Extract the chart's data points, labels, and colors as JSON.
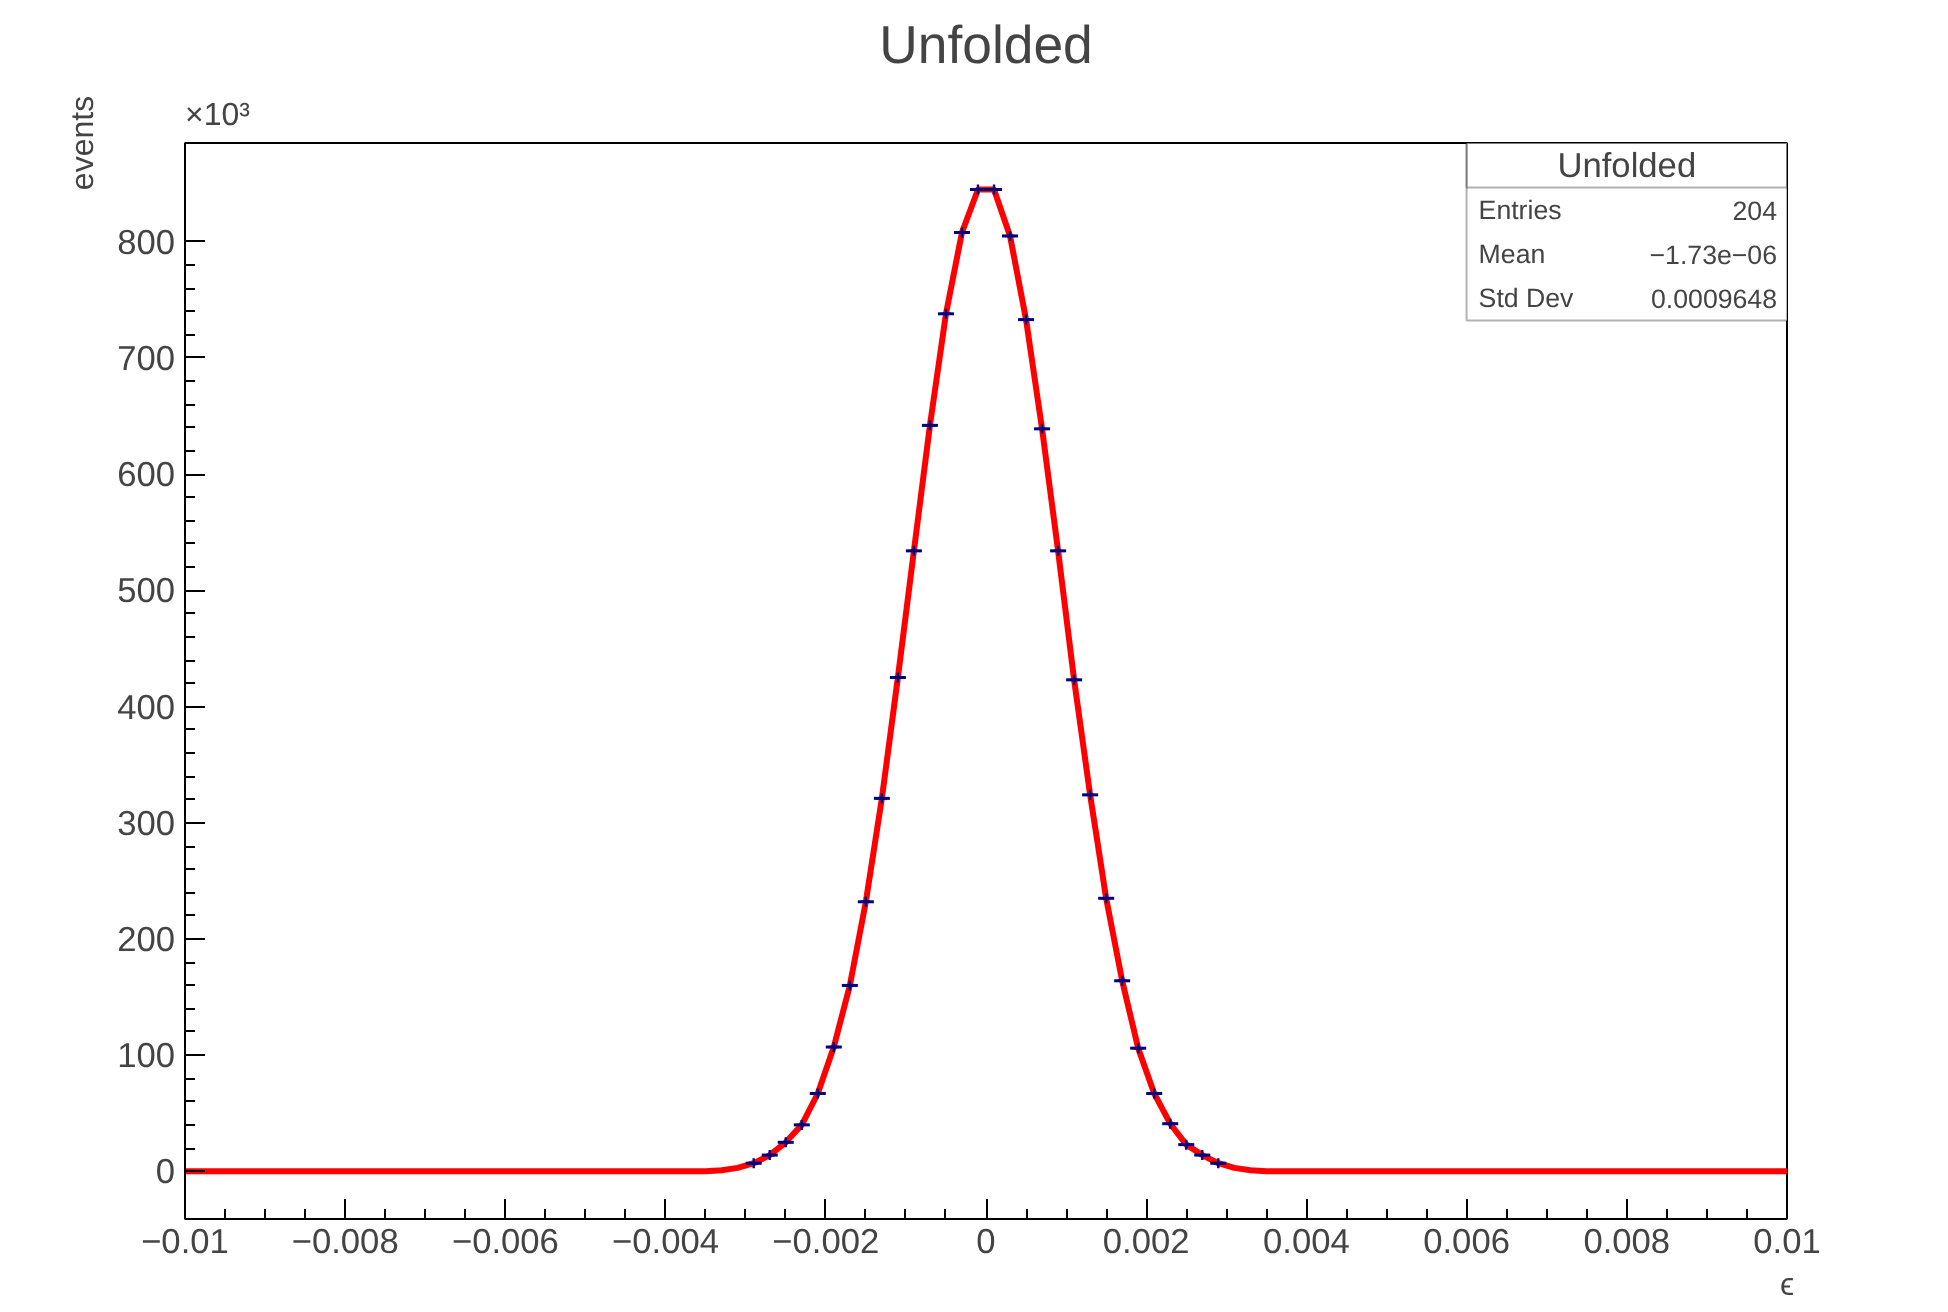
{
  "chart_data": {
    "type": "scatter",
    "title": "Unfolded",
    "xlabel": "ϵ",
    "ylabel": "events",
    "annotations": [
      "×10³",
      "Unfolded",
      "Entries",
      "204",
      "Mean",
      "−1.73e−06",
      "Std Dev",
      "0.0009648"
    ],
    "xlim": [
      -0.01,
      0.01
    ],
    "xticks": [
      {
        "value": -0.01,
        "label": "−0.01"
      },
      {
        "value": -0.008,
        "label": "−0.008"
      },
      {
        "value": -0.006,
        "label": "−0.006"
      },
      {
        "value": -0.004,
        "label": "−0.004"
      },
      {
        "value": -0.002,
        "label": "−0.002"
      },
      0,
      0.002,
      0.004,
      0.006,
      0.008,
      0.01
    ],
    "ylim": [
      -41,
      885
    ],
    "yticks": [
      0,
      100,
      200,
      300,
      400,
      500,
      600,
      700,
      800
    ],
    "grid": false,
    "marker": "cross",
    "series": [
      {
        "type": "line",
        "color": "#ff0000",
        "marker": "none",
        "x": [
          -0.01,
          -0.0035,
          -0.0033,
          -0.0031,
          -0.0029,
          -0.0027,
          -0.0025,
          -0.0023,
          -0.0021,
          -0.0019,
          -0.0017,
          -0.0015,
          -0.0013,
          -0.0011,
          -0.0009,
          -0.0007,
          -0.0005,
          -0.0003,
          -0.0001,
          0.0001,
          0.0003,
          0.0005,
          0.0007,
          0.0009,
          0.0011,
          0.0013,
          0.0015,
          0.0017,
          0.0019,
          0.0021,
          0.0023,
          0.0025,
          0.0027,
          0.0029,
          0.0031,
          0.0033,
          0.0035,
          0.01
        ],
        "values": [
          0,
          0,
          1,
          3,
          7,
          14,
          25,
          40,
          67,
          107,
          160,
          232,
          321,
          425,
          534,
          642,
          738,
          808,
          845,
          845,
          805,
          733,
          639,
          534,
          423,
          324,
          235,
          164,
          106,
          67,
          41,
          23,
          14,
          7,
          3,
          1,
          0,
          0
        ]
      },
      {
        "color": "#000080",
        "x": [
          -0.0029,
          -0.0027,
          -0.0025,
          -0.0023,
          -0.0021,
          -0.0019,
          -0.0017,
          -0.0015,
          -0.0013,
          -0.0011,
          -0.0009,
          -0.0007,
          -0.0005,
          -0.0003,
          -0.0001,
          0.0001,
          0.0003,
          0.0005,
          0.0007,
          0.0009,
          0.0011,
          0.0013,
          0.0015,
          0.0017,
          0.0019,
          0.0021,
          0.0023,
          0.0025,
          0.0027,
          0.0029
        ],
        "values": [
          7,
          14,
          25,
          40,
          67,
          107,
          160,
          232,
          321,
          425,
          534,
          642,
          738,
          808,
          845,
          845,
          805,
          733,
          639,
          534,
          423,
          324,
          235,
          164,
          106,
          67,
          41,
          23,
          14,
          7
        ],
        "xerrors": [
          0.0001,
          0.0001,
          0.0001,
          0.0001,
          0.0001,
          0.0001,
          0.0001,
          0.0001,
          0.0001,
          0.0001,
          0.0001,
          0.0001,
          0.0001,
          0.0001,
          0.0001,
          0.0001,
          0.0001,
          0.0001,
          0.0001,
          0.0001,
          0.0001,
          0.0001,
          0.0001,
          0.0001,
          0.0001,
          0.0001,
          0.0001,
          0.0001,
          0.0001,
          0.0001
        ]
      }
    ]
  }
}
